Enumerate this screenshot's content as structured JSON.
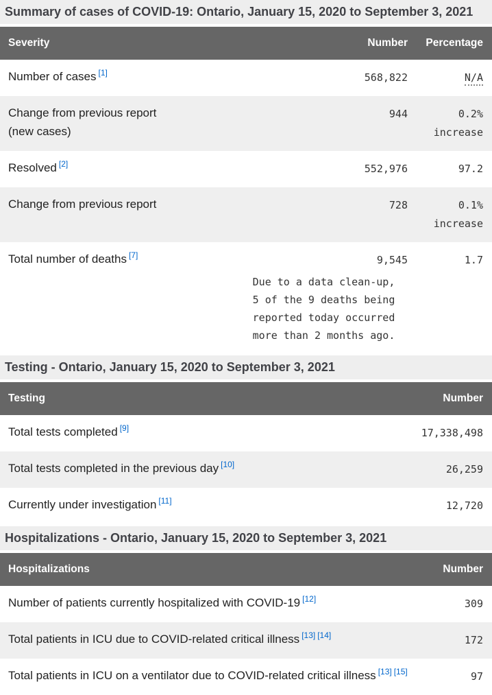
{
  "colors": {
    "table_header_bg": "#666666",
    "section_band_bg": "#eeeeee",
    "zebra_row_bg": "#efefef",
    "footnote_link": "#0066cc"
  },
  "summary": {
    "caption": "Summary of cases of COVID-19: Ontario, January 15, 2020 to September 3, 2021",
    "col_severity": "Severity",
    "col_number": "Number",
    "col_percentage": "Percentage",
    "rows": {
      "cases": {
        "label": "Number of cases",
        "ref1": "[1]",
        "number": "568,822",
        "percentage": "N/A"
      },
      "change_cases": {
        "label": "Change from previous report",
        "label2": "(new cases)",
        "number": "944",
        "pct": "0.2%",
        "pct2": "increase"
      },
      "resolved": {
        "label": "Resolved",
        "ref1": "[2]",
        "number": "552,976",
        "percentage": "97.2"
      },
      "change_resolved": {
        "label": "Change from previous report",
        "number": "728",
        "pct": "0.1%",
        "pct2": "increase"
      },
      "deaths": {
        "label": "Total number of deaths",
        "ref1": "[7]",
        "number": "9,545",
        "percentage": "1.7",
        "note_line1": "Due to a data clean-up,",
        "note_line2": "5 of the 9 deaths being",
        "note_line3": "reported today occurred",
        "note_line4": "more than 2 months ago."
      }
    }
  },
  "testing": {
    "heading": "Testing - Ontario, January 15, 2020 to September 3, 2021",
    "col_testing": "Testing",
    "col_number": "Number",
    "rows": {
      "total_tests": {
        "label": "Total tests completed",
        "ref1": "[9]",
        "number": "17,338,498"
      },
      "previous_day": {
        "label": "Total tests completed in the previous day",
        "ref1": "[10]",
        "number": "26,259"
      },
      "under_investigation": {
        "label": "Currently under investigation",
        "ref1": "[11]",
        "number": "12,720"
      }
    }
  },
  "hospitalizations": {
    "heading": "Hospitalizations - Ontario, January 15, 2020 to September 3, 2021",
    "col_hospitalizations": "Hospitalizations",
    "col_number": "Number",
    "rows": {
      "hospitalized": {
        "label": "Number of patients currently hospitalized with COVID-19",
        "ref1": "[12]",
        "number": "309"
      },
      "icu": {
        "label": "Total patients in ICU due to COVID-related critical illness",
        "ref1": "[13]",
        "ref2": "[14]",
        "number": "172"
      },
      "icu_ventilator": {
        "label": "Total patients in ICU on a ventilator due to COVID-related critical illness",
        "ref1": "[13]",
        "ref2": "[15]",
        "number": "97"
      }
    }
  }
}
